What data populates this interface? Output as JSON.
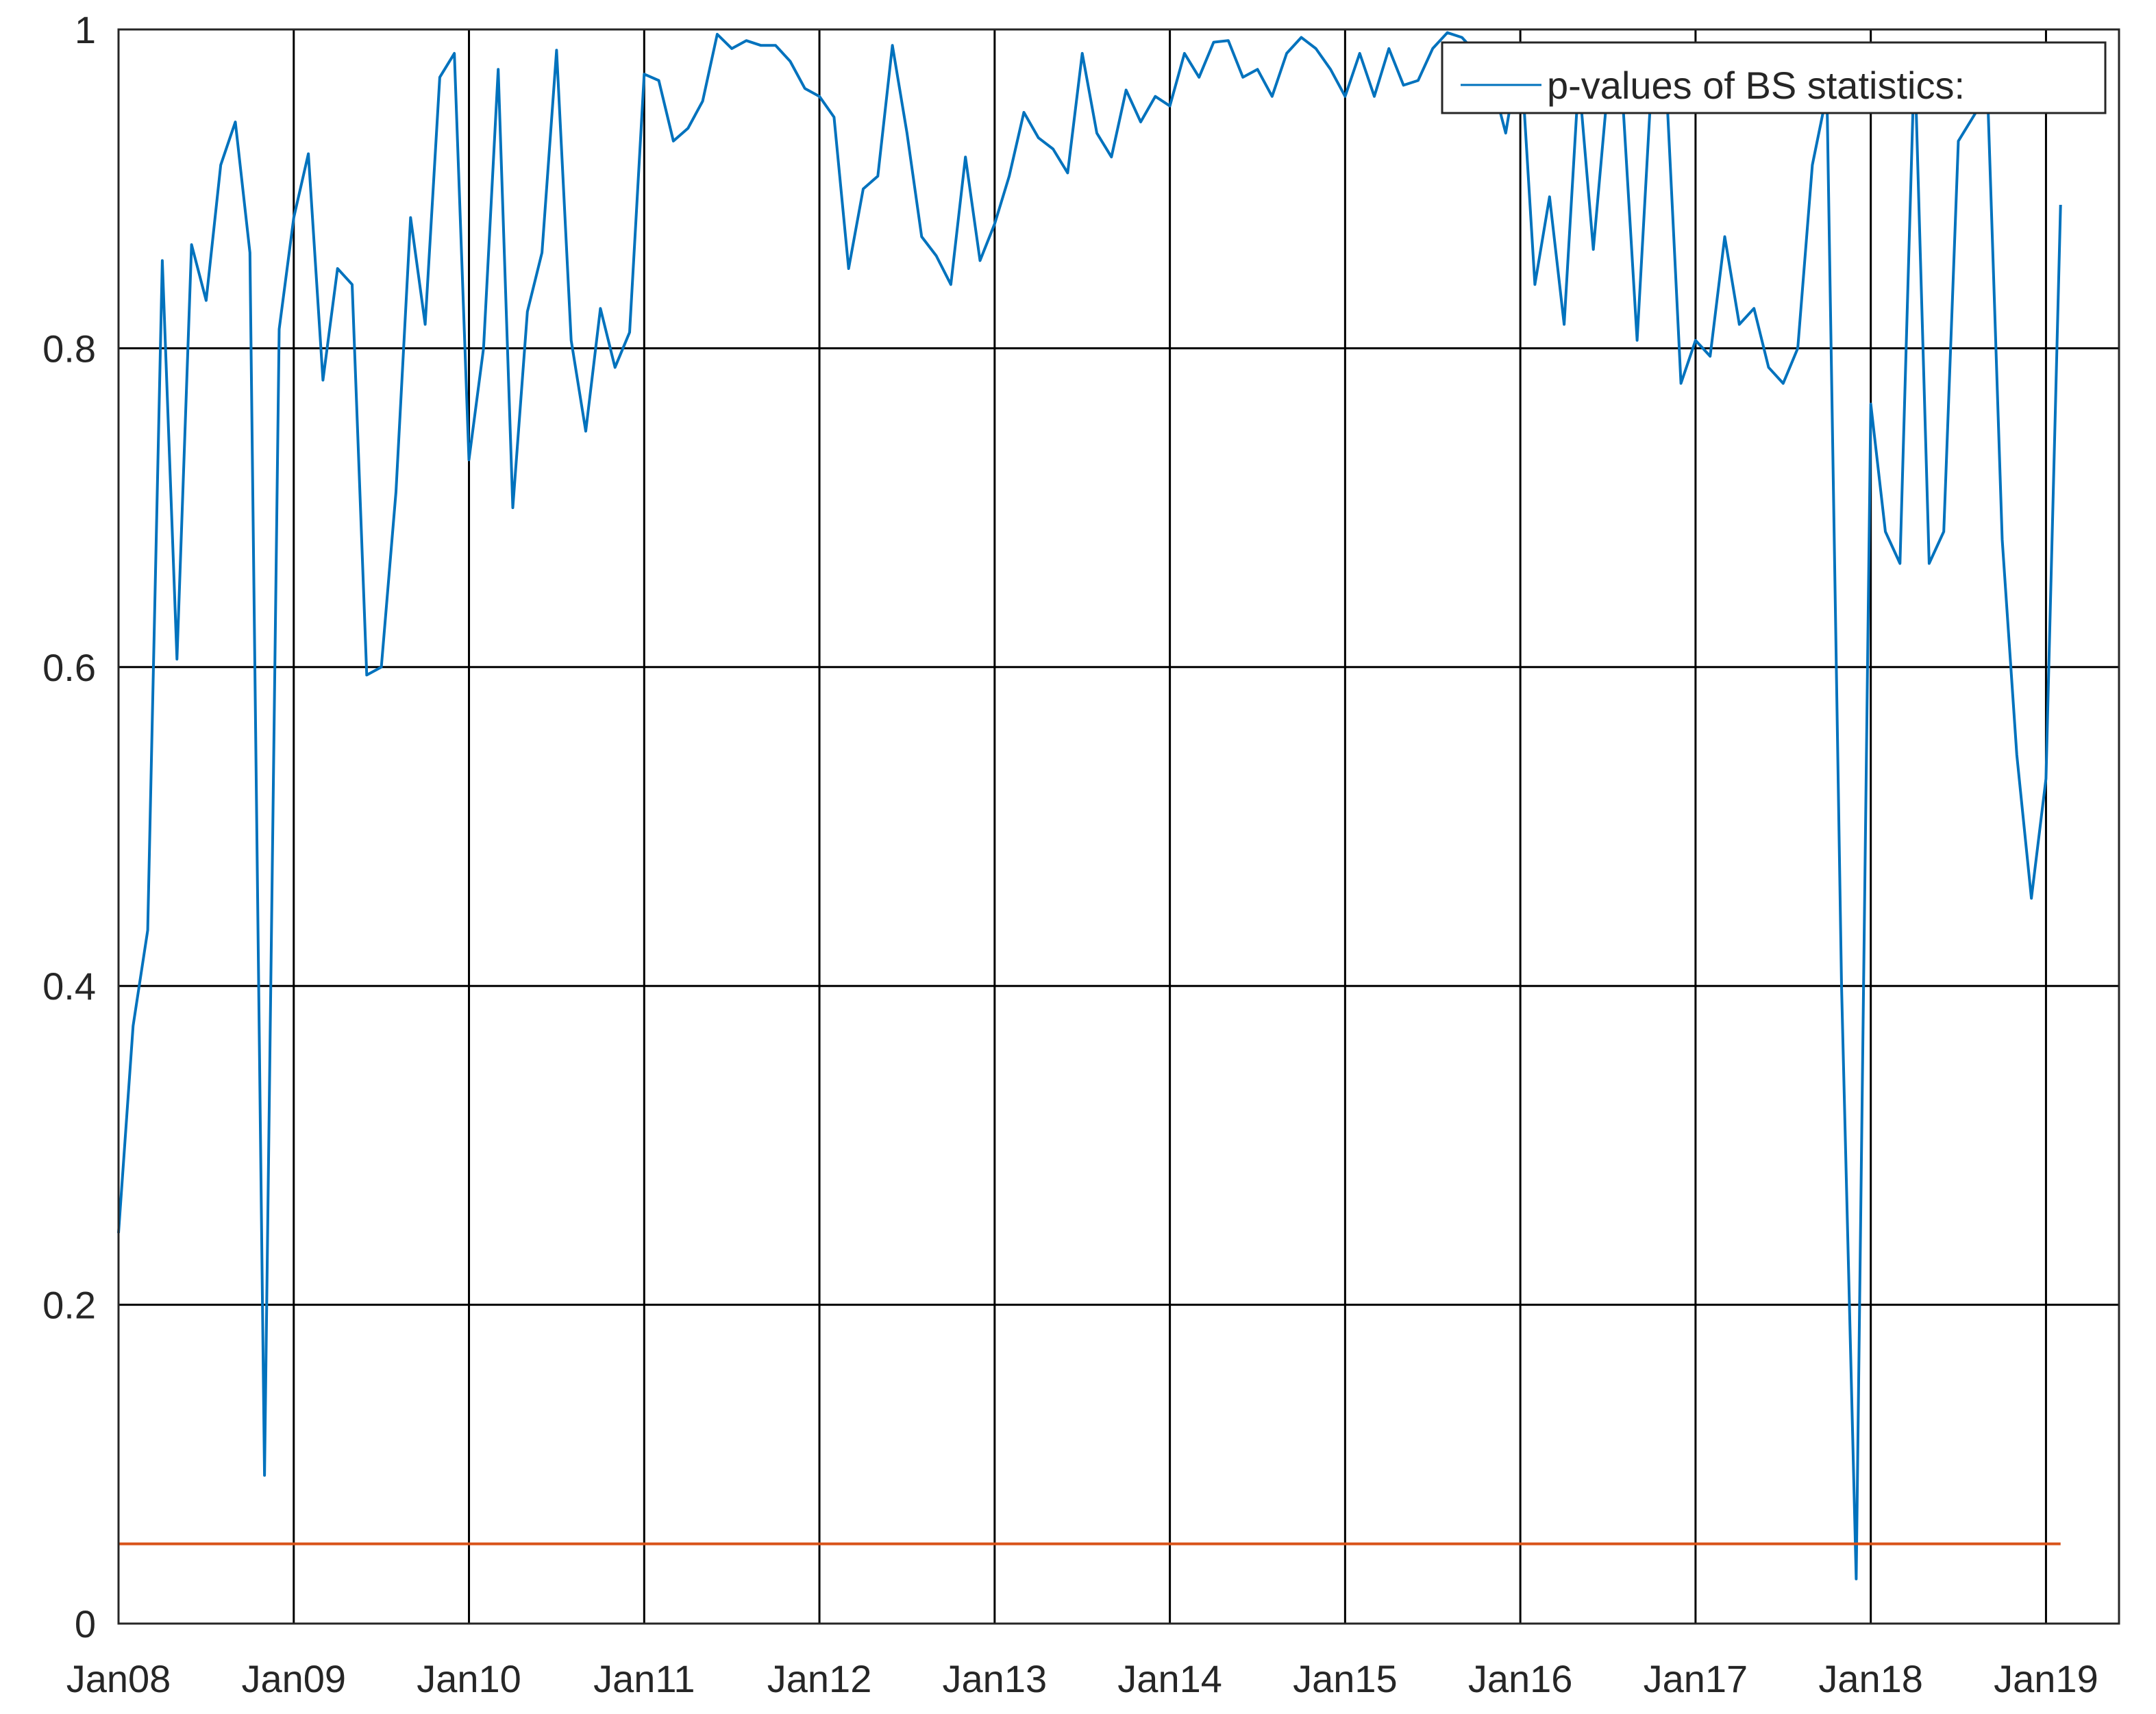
{
  "chart_data": {
    "type": "line",
    "xlabel": "",
    "ylabel": "",
    "xlim": [
      "2008-01",
      "2019-06"
    ],
    "ylim": [
      0,
      1
    ],
    "x_ticks": [
      "Jan08",
      "Jan09",
      "Jan10",
      "Jan11",
      "Jan12",
      "Jan13",
      "Jan14",
      "Jan15",
      "Jan16",
      "Jan17",
      "Jan18",
      "Jan19"
    ],
    "y_ticks": [
      "0",
      "0.2",
      "0.4",
      "0.6",
      "0.8",
      "1"
    ],
    "grid": true,
    "legend": {
      "placement": "top-right",
      "entries": [
        "p-values of BS statistics:"
      ]
    },
    "colors": {
      "pvalues": "#0072BD",
      "threshold": "#D95319",
      "grid": "#000000",
      "axis": "#262626"
    },
    "start": "2008-01",
    "series": [
      {
        "name": "p-values of BS statistics:",
        "color": "#0072BD",
        "values": [
          0.245,
          0.375,
          0.435,
          0.855,
          0.605,
          0.865,
          0.83,
          0.915,
          0.942,
          0.86,
          0.093,
          0.812,
          0.882,
          0.922,
          0.78,
          0.85,
          0.84,
          0.595,
          0.6,
          0.71,
          0.882,
          0.815,
          0.97,
          0.985,
          0.73,
          0.8,
          0.975,
          0.7,
          0.823,
          0.86,
          0.987,
          0.805,
          0.748,
          0.825,
          0.788,
          0.81,
          0.972,
          0.968,
          0.93,
          0.938,
          0.955,
          0.997,
          0.988,
          0.993,
          0.99,
          0.99,
          0.98,
          0.963,
          0.958,
          0.945,
          0.85,
          0.9,
          0.908,
          0.99,
          0.935,
          0.87,
          0.858,
          0.84,
          0.92,
          0.855,
          0.878,
          0.908,
          0.948,
          0.932,
          0.925,
          0.91,
          0.985,
          0.935,
          0.92,
          0.962,
          0.942,
          0.958,
          0.952,
          0.985,
          0.97,
          0.992,
          0.993,
          0.97,
          0.975,
          0.958,
          0.985,
          0.995,
          0.988,
          0.975,
          0.958,
          0.985,
          0.958,
          0.988,
          0.965,
          0.968,
          0.988,
          0.998,
          0.995,
          0.985,
          0.97,
          0.935,
          0.99,
          0.84,
          0.895,
          0.815,
          0.97,
          0.862,
          0.965,
          0.958,
          0.805,
          0.97,
          0.965,
          0.778,
          0.805,
          0.795,
          0.87,
          0.815,
          0.825,
          0.788,
          0.778,
          0.8,
          0.915,
          0.96,
          0.4,
          0.028,
          0.765,
          0.685,
          0.665,
          0.985,
          0.665,
          0.685,
          0.93,
          0.945,
          0.96,
          0.68,
          0.545,
          0.455,
          0.53,
          0.89
        ]
      },
      {
        "name": "",
        "color": "#D95319",
        "values": [
          0.05,
          0.05
        ]
      }
    ]
  }
}
